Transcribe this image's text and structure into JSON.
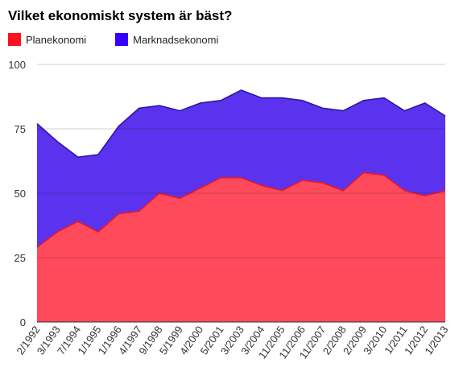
{
  "chart_data": {
    "type": "area",
    "title": "Vilket ekonomiskt system är bäst?",
    "stacked": true,
    "legend_position": "top-left",
    "grid": true,
    "ylim": [
      0,
      100
    ],
    "yticks": [
      0,
      25,
      50,
      75,
      100
    ],
    "categories": [
      "2/1992",
      "3/1993",
      "7/1994",
      "1/1995",
      "1/1996",
      "4/1997",
      "9/1998",
      "5/1999",
      "4/2000",
      "5/2001",
      "3/2003",
      "3/2004",
      "11/2005",
      "11/2006",
      "11/2007",
      "2/2008",
      "2/2009",
      "3/2010",
      "1/2011",
      "1/2012",
      "1/2013"
    ],
    "series": [
      {
        "name": "Planekonomi",
        "color": "#ff4a5c",
        "values": [
          29,
          35,
          39,
          35,
          42,
          43,
          50,
          48,
          52,
          56,
          56,
          53,
          51,
          55,
          54,
          51,
          58,
          57,
          51,
          49,
          51
        ]
      },
      {
        "name": "Marknadsekonomi",
        "color": "#5b33ee",
        "values": [
          48,
          35,
          25,
          30,
          34,
          40,
          34,
          34,
          33,
          30,
          34,
          34,
          36,
          31,
          29,
          31,
          28,
          30,
          31,
          36,
          29
        ]
      }
    ]
  }
}
